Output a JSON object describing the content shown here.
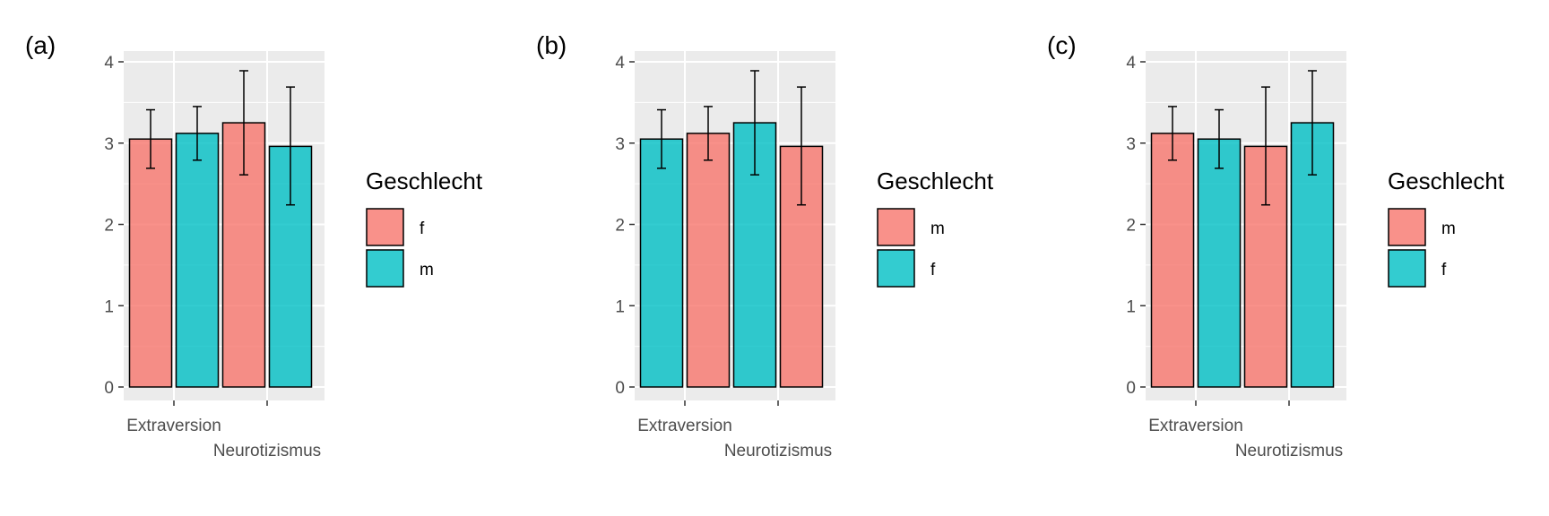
{
  "chart_data": [
    {
      "type": "bar",
      "panel_label": "(a)",
      "categories": [
        "Extraversion",
        "Neurotizismus"
      ],
      "ylim": [
        0,
        4
      ],
      "yticks": [
        0,
        1,
        2,
        3,
        4
      ],
      "grid": true,
      "legend": {
        "title": "Geschlecht",
        "placement": "right"
      },
      "series": [
        {
          "name": "f",
          "color": "#F8766D",
          "values": [
            3.05,
            3.25
          ],
          "err_low": [
            2.69,
            2.61
          ],
          "err_high": [
            3.41,
            3.89
          ]
        },
        {
          "name": "m",
          "color": "#00BFC4",
          "values": [
            3.12,
            2.96
          ],
          "err_low": [
            2.79,
            2.24
          ],
          "err_high": [
            3.45,
            3.69
          ]
        }
      ]
    },
    {
      "type": "bar",
      "panel_label": "(b)",
      "categories": [
        "Extraversion",
        "Neurotizismus"
      ],
      "ylim": [
        0,
        4
      ],
      "yticks": [
        0,
        1,
        2,
        3,
        4
      ],
      "grid": true,
      "legend": {
        "title": "Geschlecht",
        "placement": "right"
      },
      "series": [
        {
          "name": "m",
          "color": "#F8766D",
          "values": [
            3.12,
            2.96
          ],
          "err_low": [
            2.79,
            2.24
          ],
          "err_high": [
            3.45,
            3.69
          ]
        },
        {
          "name": "f",
          "color": "#00BFC4",
          "values": [
            3.05,
            3.25
          ],
          "err_low": [
            2.69,
            2.61
          ],
          "err_high": [
            3.41,
            3.89
          ]
        }
      ],
      "bar_order": [
        "f",
        "m"
      ]
    },
    {
      "type": "bar",
      "panel_label": "(c)",
      "categories": [
        "Extraversion",
        "Neurotizismus"
      ],
      "ylim": [
        0,
        4
      ],
      "yticks": [
        0,
        1,
        2,
        3,
        4
      ],
      "grid": true,
      "legend": {
        "title": "Geschlecht",
        "placement": "right"
      },
      "series": [
        {
          "name": "m",
          "color": "#F8766D",
          "values": [
            3.12,
            2.96
          ],
          "err_low": [
            2.79,
            2.24
          ],
          "err_high": [
            3.45,
            3.69
          ]
        },
        {
          "name": "f",
          "color": "#00BFC4",
          "values": [
            3.05,
            3.25
          ],
          "err_low": [
            2.69,
            2.61
          ],
          "err_high": [
            3.41,
            3.89
          ]
        }
      ],
      "bar_order": [
        "m",
        "f"
      ]
    }
  ]
}
